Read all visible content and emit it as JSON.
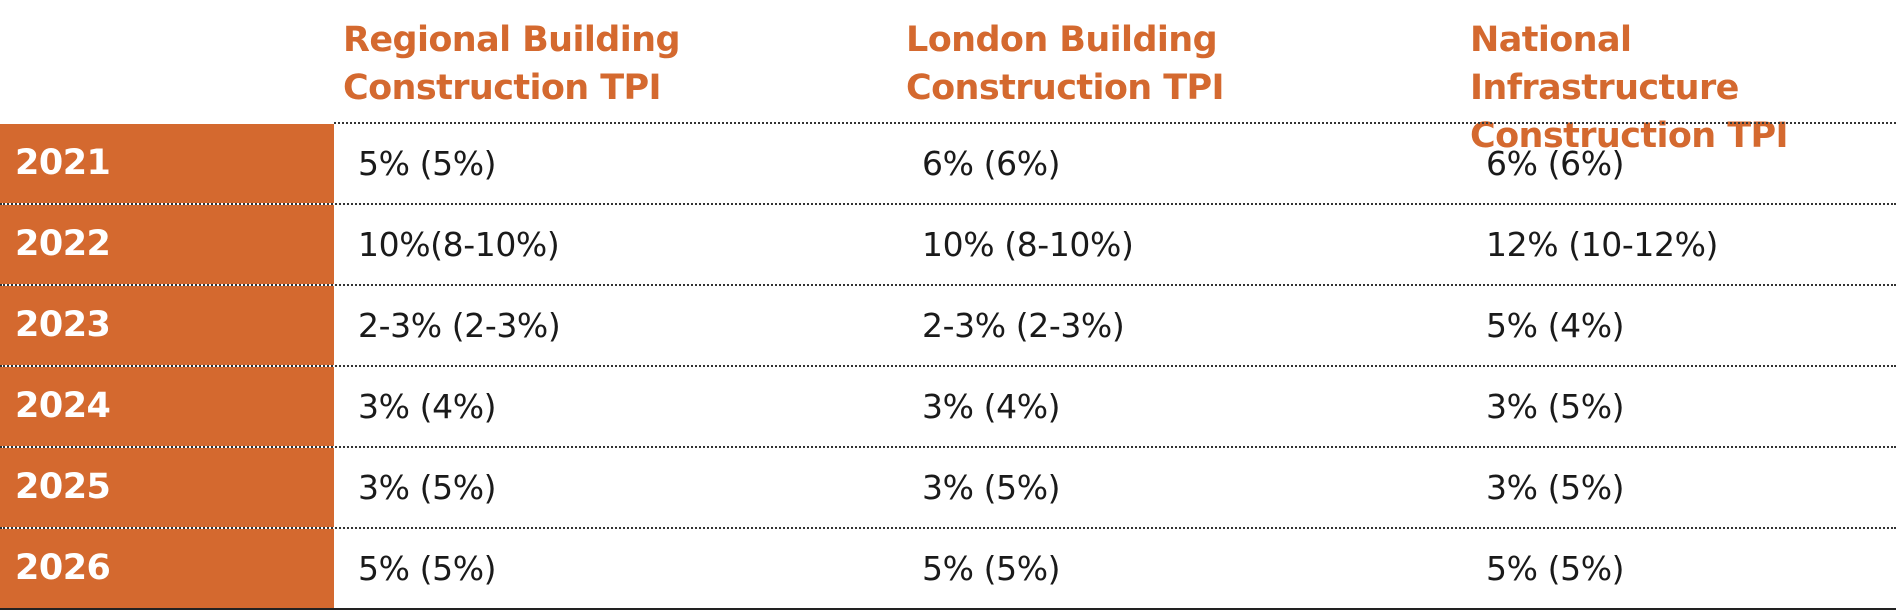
{
  "headers": {
    "col1": "Regional Building\nConstruction TPI",
    "col2": "London Building\nConstruction TPI",
    "col3": "National Infrastructure\nConstruction TPI"
  },
  "rows": [
    {
      "year": "2021",
      "regional": "5% (5%)",
      "london": "6% (6%)",
      "national": "6% (6%)"
    },
    {
      "year": "2022",
      "regional": "10%(8-10%)",
      "london": "10% (8-10%)",
      "national": "12% (10-12%)"
    },
    {
      "year": "2023",
      "regional": "2-3% (2-3%)",
      "london": "2-3% (2-3%)",
      "national": "5% (4%)"
    },
    {
      "year": "2024",
      "regional": "3% (4%)",
      "london": "3% (4%)",
      "national": "3% (5%)"
    },
    {
      "year": "2025",
      "regional": "3% (5%)",
      "london": "3% (5%)",
      "national": "3% (5%)"
    },
    {
      "year": "2026",
      "regional": "5% (5%)",
      "london": "5% (5%)",
      "national": "5% (5%)"
    }
  ],
  "colors": {
    "accent": "#d4692f",
    "text": "#1a1a1a",
    "year_text": "#ffffff"
  }
}
